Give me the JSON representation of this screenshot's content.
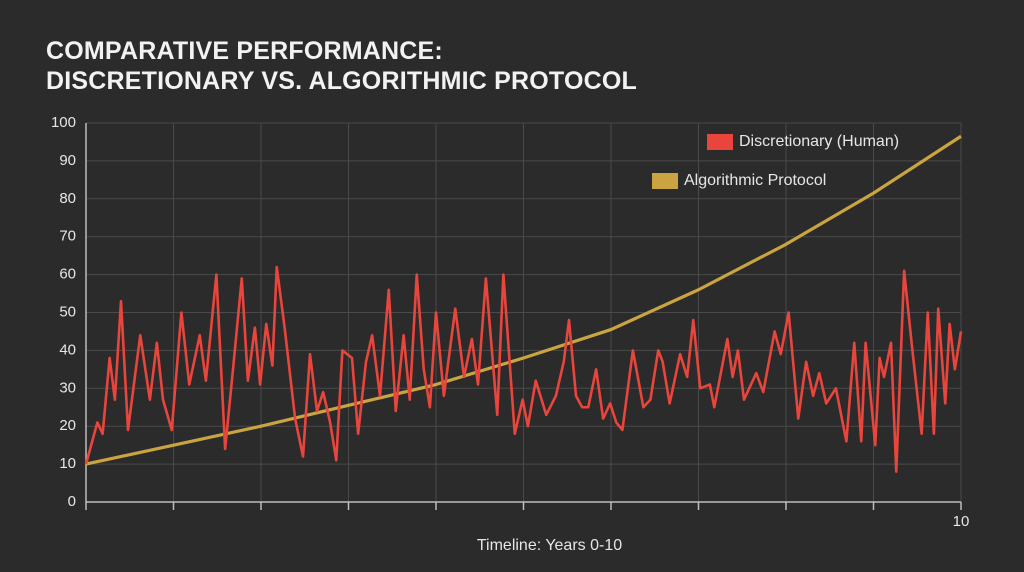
{
  "chart_data": {
    "type": "line",
    "title": "COMPARATIVE PERFORMANCE:\nDISCRETIONARY VS. ALGORITHMIC PROTOCOL",
    "xlabel": "Timeline: Years 0-10",
    "xlim": [
      0,
      10
    ],
    "ylim": [
      0,
      100
    ],
    "xticks": [
      {
        "value": 0,
        "label": null
      },
      {
        "value": 1,
        "label": null
      },
      {
        "value": 2,
        "label": null
      },
      {
        "value": 3,
        "label": null
      },
      {
        "value": 4,
        "label": null
      },
      {
        "value": 5,
        "label": null
      },
      {
        "value": 6,
        "label": null
      },
      {
        "value": 7,
        "label": null
      },
      {
        "value": 8,
        "label": null
      },
      {
        "value": 9,
        "label": null
      },
      10
    ],
    "yticks": [
      0,
      10,
      20,
      30,
      40,
      50,
      60,
      70,
      80,
      90,
      100
    ],
    "grid": true,
    "legend": "upper right",
    "series": [
      {
        "name": "Discretionary (Human)",
        "color": "#e8453c",
        "x": [
          0,
          0.13,
          0.19,
          0.27,
          0.33,
          0.4,
          0.48,
          0.62,
          0.73,
          0.81,
          0.88,
          0.98,
          1.09,
          1.18,
          1.3,
          1.37,
          1.49,
          1.59,
          1.68,
          1.78,
          1.85,
          1.93,
          1.99,
          2.06,
          2.13,
          2.18,
          2.27,
          2.39,
          2.48,
          2.56,
          2.64,
          2.71,
          2.79,
          2.86,
          2.93,
          3.04,
          3.11,
          3.2,
          3.27,
          3.36,
          3.46,
          3.54,
          3.63,
          3.7,
          3.78,
          3.86,
          3.93,
          4.0,
          4.09,
          4.22,
          4.32,
          4.41,
          4.48,
          4.57,
          4.7,
          4.77,
          4.9,
          4.99,
          5.05,
          5.14,
          5.26,
          5.37,
          5.46,
          5.52,
          5.6,
          5.67,
          5.74,
          5.83,
          5.91,
          5.99,
          6.06,
          6.13,
          6.25,
          6.37,
          6.45,
          6.54,
          6.59,
          6.67,
          6.79,
          6.87,
          6.94,
          7.02,
          7.13,
          7.18,
          7.33,
          7.39,
          7.45,
          7.52,
          7.66,
          7.74,
          7.87,
          7.94,
          8.03,
          8.14,
          8.23,
          8.31,
          8.38,
          8.46,
          8.57,
          8.69,
          8.78,
          8.86,
          8.91,
          9.02,
          9.07,
          9.12,
          9.2,
          9.26,
          9.35,
          9.44,
          9.55,
          9.62,
          9.69,
          9.74,
          9.82,
          9.87,
          9.93,
          10
        ],
        "values": [
          10,
          21,
          18,
          38,
          27,
          53,
          19,
          44,
          27,
          42,
          27,
          19,
          50,
          31,
          44,
          32,
          60,
          14,
          35,
          59,
          32,
          46,
          31,
          47,
          36,
          62,
          46,
          22,
          12,
          39,
          24,
          29,
          21,
          11,
          40,
          38,
          18,
          37,
          44,
          28,
          56,
          24,
          44,
          27,
          60,
          35,
          25,
          50,
          28,
          51,
          33,
          43,
          31,
          59,
          23,
          60,
          18,
          27,
          20,
          32,
          23,
          28,
          37,
          48,
          28,
          25,
          25,
          35,
          22,
          26,
          21,
          19,
          40,
          25,
          27,
          40,
          37,
          26,
          39,
          33,
          48,
          30,
          31,
          25,
          43,
          33,
          40,
          27,
          34,
          29,
          45,
          39,
          50,
          22,
          37,
          28,
          34,
          26,
          30,
          16,
          42,
          16,
          42,
          15,
          38,
          33,
          42,
          8,
          61,
          41,
          18,
          50,
          18,
          51,
          26,
          47,
          35,
          45
        ]
      },
      {
        "name": "Algorithmic Protocol",
        "color": "#c9a441",
        "x": [
          0,
          1,
          2,
          3,
          4,
          5,
          6,
          7,
          8,
          9,
          10
        ],
        "values": [
          10,
          15,
          20,
          25.5,
          31,
          38,
          45.5,
          56,
          68,
          81.5,
          96.5
        ]
      }
    ]
  }
}
